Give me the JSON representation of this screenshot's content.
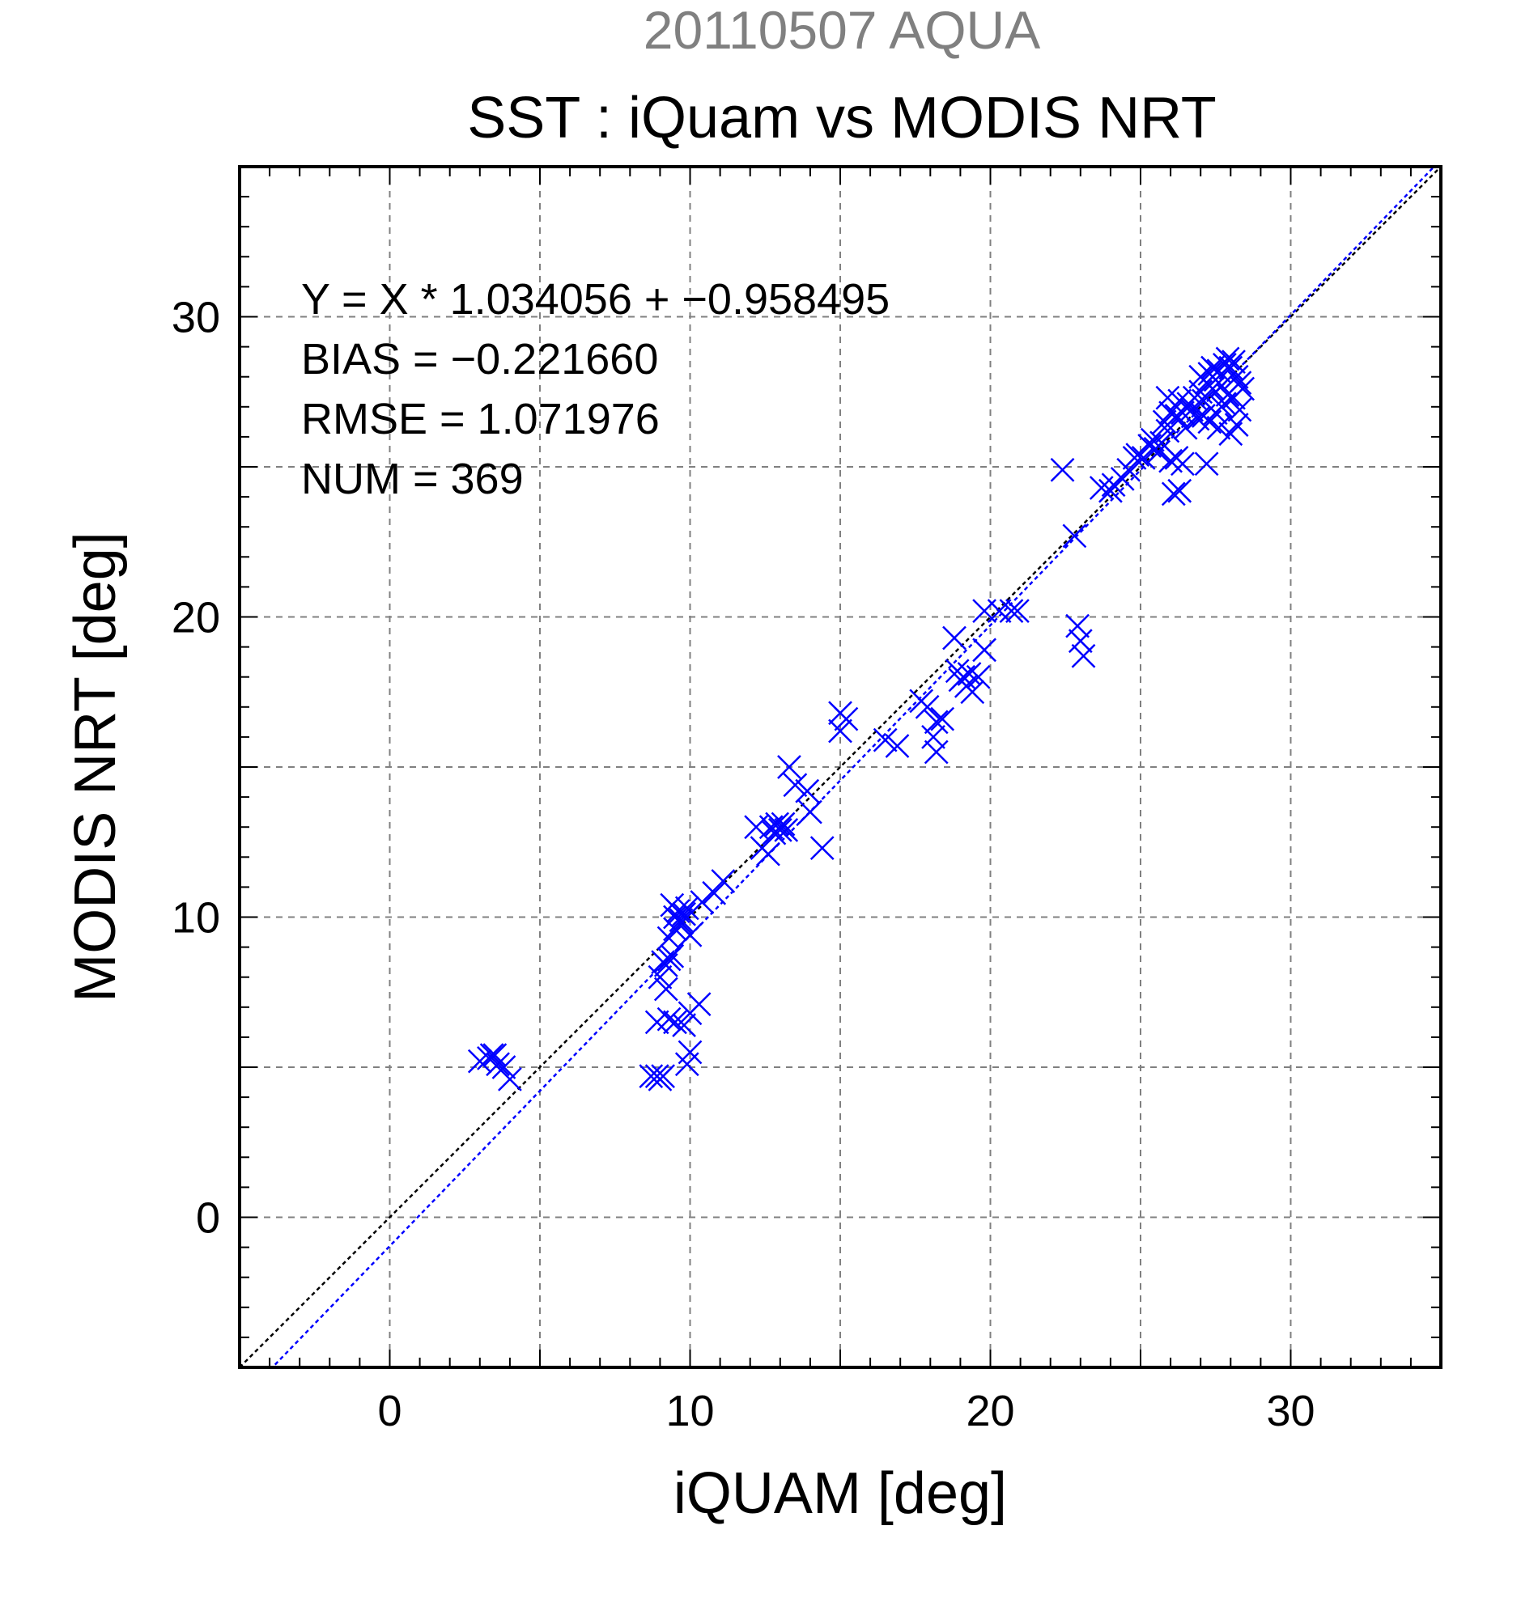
{
  "chart_data": {
    "type": "scatter",
    "header": "20110507 AQUA",
    "title": "SST : iQuam vs MODIS NRT",
    "xlabel": "iQUAM [deg]",
    "ylabel": "MODIS NRT [deg]",
    "xlim": [
      -5,
      35
    ],
    "ylim": [
      -5,
      35
    ],
    "xticks": [
      0,
      10,
      20,
      30
    ],
    "yticks": [
      0,
      10,
      20,
      30
    ],
    "grid": true,
    "annotations": [
      "Y = X * 1.034056 + −0.958495",
      "BIAS = −0.221660",
      "RMSE = 1.071976",
      "NUM = 369"
    ],
    "lines": [
      {
        "role": "one-to-one",
        "slope": 1.0,
        "intercept": 0.0,
        "color": "#000000"
      },
      {
        "role": "regression",
        "slope": 1.034056,
        "intercept": -0.958495,
        "color": "#0000ff"
      }
    ],
    "colors": {
      "points": "#0000ff",
      "header": "#808080",
      "grid": "#808080"
    },
    "points": [
      [
        3.0,
        5.2
      ],
      [
        3.3,
        5.3
      ],
      [
        3.5,
        5.4
      ],
      [
        3.6,
        5.1
      ],
      [
        3.8,
        5.0
      ],
      [
        4.0,
        4.6
      ],
      [
        3.4,
        5.4
      ],
      [
        8.7,
        4.7
      ],
      [
        8.9,
        4.7
      ],
      [
        9.1,
        4.7
      ],
      [
        9.0,
        4.6
      ],
      [
        8.9,
        6.5
      ],
      [
        9.3,
        6.6
      ],
      [
        9.5,
        6.5
      ],
      [
        9.8,
        6.4
      ],
      [
        10.0,
        6.8
      ],
      [
        10.3,
        7.1
      ],
      [
        10.0,
        5.5
      ],
      [
        9.9,
        5.1
      ],
      [
        9.0,
        8.0
      ],
      [
        9.2,
        7.6
      ],
      [
        9.1,
        8.5
      ],
      [
        9.3,
        8.6
      ],
      [
        9.2,
        8.4
      ],
      [
        9.4,
        8.7
      ],
      [
        9.5,
        9.6
      ],
      [
        9.7,
        9.8
      ],
      [
        9.6,
        10.2
      ],
      [
        9.4,
        10.4
      ],
      [
        9.8,
        10.1
      ],
      [
        9.9,
        10.3
      ],
      [
        9.5,
        10.0
      ],
      [
        9.7,
        9.9
      ],
      [
        10.0,
        9.4
      ],
      [
        9.3,
        9.3
      ],
      [
        10.4,
        10.5
      ],
      [
        10.8,
        10.8
      ],
      [
        11.1,
        11.2
      ],
      [
        12.2,
        13.0
      ],
      [
        12.4,
        12.3
      ],
      [
        12.6,
        12.1
      ],
      [
        12.9,
        13.1
      ],
      [
        13.0,
        12.9
      ],
      [
        13.2,
        12.9
      ],
      [
        13.1,
        13.1
      ],
      [
        12.8,
        12.8
      ],
      [
        13.3,
        15.0
      ],
      [
        13.5,
        14.4
      ],
      [
        13.9,
        14.2
      ],
      [
        14.0,
        13.5
      ],
      [
        14.4,
        12.3
      ],
      [
        12.7,
        13.0
      ],
      [
        15.0,
        16.8
      ],
      [
        15.2,
        16.6
      ],
      [
        15.0,
        16.2
      ],
      [
        16.5,
        15.9
      ],
      [
        16.9,
        15.7
      ],
      [
        17.7,
        17.2
      ],
      [
        17.9,
        17.0
      ],
      [
        18.2,
        16.5
      ],
      [
        18.4,
        16.6
      ],
      [
        18.1,
        16.0
      ],
      [
        18.2,
        15.5
      ],
      [
        18.8,
        19.3
      ],
      [
        18.9,
        18.2
      ],
      [
        19.1,
        18.0
      ],
      [
        19.2,
        17.7
      ],
      [
        19.4,
        17.5
      ],
      [
        19.3,
        18.1
      ],
      [
        19.6,
        18.0
      ],
      [
        19.0,
        17.9
      ],
      [
        19.8,
        18.9
      ],
      [
        19.8,
        20.2
      ],
      [
        20.3,
        20.2
      ],
      [
        20.7,
        20.2
      ],
      [
        20.9,
        20.2
      ],
      [
        22.4,
        24.9
      ],
      [
        22.8,
        22.7
      ],
      [
        22.9,
        19.7
      ],
      [
        23.0,
        19.2
      ],
      [
        23.1,
        18.7
      ],
      [
        23.7,
        24.3
      ],
      [
        24.0,
        24.2
      ],
      [
        24.1,
        24.4
      ],
      [
        24.4,
        24.6
      ],
      [
        24.6,
        24.9
      ],
      [
        24.8,
        25.3
      ],
      [
        24.9,
        25.4
      ],
      [
        25.1,
        25.3
      ],
      [
        25.3,
        25.7
      ],
      [
        25.5,
        25.6
      ],
      [
        25.7,
        25.8
      ],
      [
        25.9,
        26.2
      ],
      [
        25.8,
        26.5
      ],
      [
        25.6,
        25.5
      ],
      [
        26.0,
        25.2
      ],
      [
        26.2,
        25.3
      ],
      [
        26.4,
        25.1
      ],
      [
        26.3,
        24.2
      ],
      [
        26.1,
        24.1
      ],
      [
        26.0,
        26.8
      ],
      [
        26.2,
        26.7
      ],
      [
        26.4,
        26.8
      ],
      [
        26.6,
        27.1
      ],
      [
        26.8,
        27.3
      ],
      [
        27.0,
        27.5
      ],
      [
        27.1,
        27.2
      ],
      [
        27.2,
        27.8
      ],
      [
        27.3,
        28.1
      ],
      [
        27.4,
        27.6
      ],
      [
        27.5,
        27.9
      ],
      [
        27.6,
        28.2
      ],
      [
        27.7,
        27.7
      ],
      [
        27.8,
        28.4
      ],
      [
        27.9,
        28.6
      ],
      [
        28.0,
        28.3
      ],
      [
        28.1,
        28.5
      ],
      [
        28.2,
        28.0
      ],
      [
        28.3,
        27.8
      ],
      [
        28.4,
        27.6
      ],
      [
        27.9,
        27.4
      ],
      [
        27.7,
        27.0
      ],
      [
        27.5,
        26.8
      ],
      [
        27.3,
        26.5
      ],
      [
        27.1,
        26.7
      ],
      [
        26.9,
        26.6
      ],
      [
        27.2,
        25.1
      ],
      [
        27.6,
        26.3
      ],
      [
        28.0,
        26.1
      ],
      [
        28.2,
        26.4
      ],
      [
        28.3,
        26.9
      ],
      [
        25.9,
        27.3
      ],
      [
        26.5,
        26.3
      ],
      [
        26.7,
        26.9
      ],
      [
        27.0,
        28.0
      ],
      [
        27.8,
        27.1
      ],
      [
        28.1,
        27.3
      ],
      [
        27.4,
        28.3
      ],
      [
        26.3,
        27.2
      ],
      [
        25.4,
        25.9
      ]
    ]
  }
}
